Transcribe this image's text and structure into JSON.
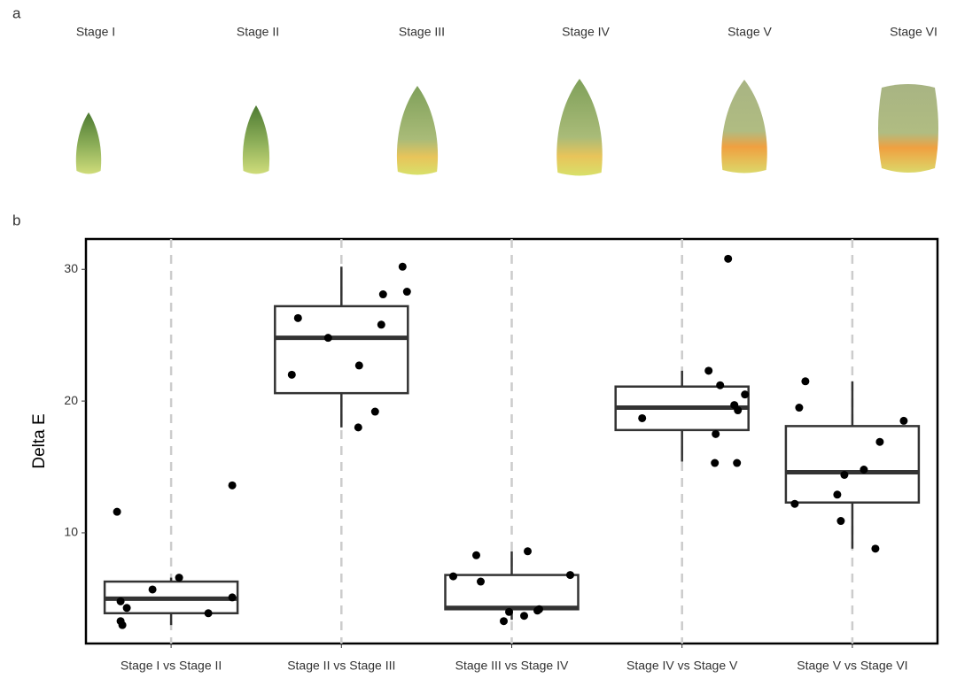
{
  "panel_labels": [
    "a",
    "b"
  ],
  "stages": [
    "Stage I",
    "Stage II",
    "Stage III",
    "Stage IV",
    "Stage V",
    "Stage VI"
  ],
  "chart_data": {
    "type": "box",
    "categories": [
      "Stage I vs Stage II",
      "Stage II vs Stage III",
      "Stage III vs Stage IV",
      "Stage IV vs Stage V",
      "Stage V vs Stage VI"
    ],
    "y_label": "Delta E",
    "ylim": [
      1.6,
      32.3
    ],
    "yticks": [
      10,
      20,
      30
    ],
    "grid": true,
    "color": "#333333",
    "point_color": "#000000",
    "boxes": [
      {
        "low": 3.0,
        "q1": 3.9,
        "median": 5.0,
        "q3": 6.3,
        "high": 6.6
      },
      {
        "low": 18.0,
        "q1": 20.6,
        "median": 24.8,
        "q3": 27.2,
        "high": 30.2
      },
      {
        "low": 3.4,
        "q1": 4.2,
        "median": 4.3,
        "q3": 6.8,
        "high": 8.6
      },
      {
        "low": 15.4,
        "q1": 17.8,
        "median": 19.5,
        "q3": 21.1,
        "high": 22.3
      },
      {
        "low": 8.8,
        "q1": 12.3,
        "median": 14.6,
        "q3": 18.1,
        "high": 21.5
      }
    ],
    "points": [
      [
        11.6,
        4.8,
        4.3,
        3.3,
        3.0,
        5.7,
        6.6,
        3.9,
        5.1,
        13.6
      ],
      [
        26.3,
        22.0,
        24.8,
        22.7,
        18.0,
        19.2,
        25.8,
        28.1,
        30.2,
        28.3
      ],
      [
        8.3,
        6.7,
        6.3,
        4.0,
        3.3,
        3.7,
        4.1,
        4.2,
        8.6,
        6.8
      ],
      [
        30.8,
        22.3,
        21.2,
        20.5,
        19.7,
        19.3,
        18.7,
        17.5,
        15.3,
        15.3
      ],
      [
        21.5,
        19.5,
        18.5,
        16.9,
        14.8,
        14.4,
        12.9,
        12.2,
        10.9,
        8.8
      ]
    ]
  }
}
